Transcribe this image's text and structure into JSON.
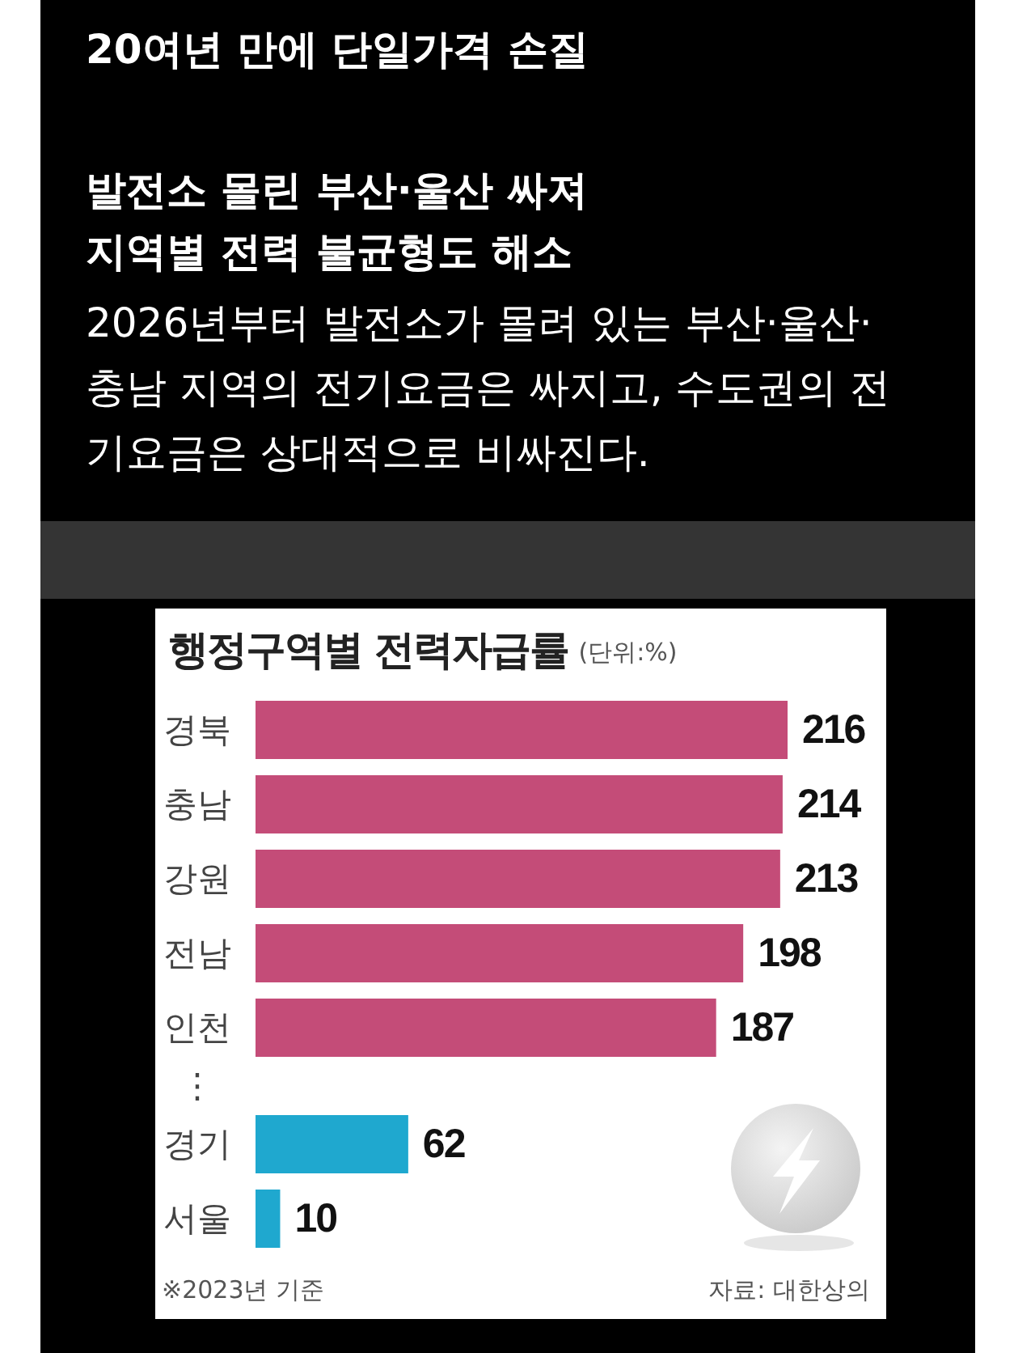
{
  "chart_data": {
    "type": "bar",
    "orientation": "horizontal",
    "title": "행정구역별 전력자급률",
    "subtitle": "(단위:%)",
    "categories": [
      "경북",
      "충남",
      "강원",
      "전남",
      "인천",
      "⋮",
      "경기",
      "서울"
    ],
    "values": [
      216,
      214,
      213,
      198,
      187,
      null,
      62,
      10
    ],
    "colors": [
      "#c44c78",
      "#c44c78",
      "#c44c78",
      "#c44c78",
      "#c44c78",
      null,
      "#1fa8cf",
      "#1fa8cf"
    ],
    "data_labels": true,
    "annotations": [
      "20여년 만에 단일가격 손질",
      "발전소 몰린 부산·울산 싸져\n지역별 전력 불균형도 해소",
      "2026년부터 발전소가 몰려 있는 부산·울산·충남 지역의 전기요금은 싸지고, 수도권의 전기요금은 상대적으로 비싸진다.",
      "※2023년 기준",
      "자료: 대한상의"
    ]
  }
}
